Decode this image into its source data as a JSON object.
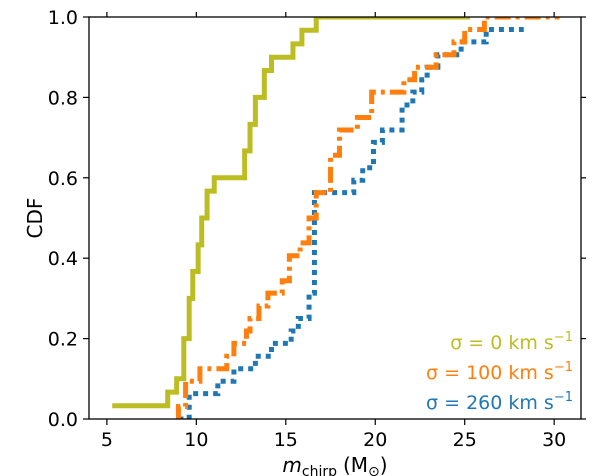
{
  "chart_data": {
    "type": "line",
    "title": "",
    "xlabel_main": "m",
    "xlabel_sub": "chirp",
    "xlabel_unit": "(M",
    "xlabel_unit_sub": "⊙",
    "xlabel_close": ")",
    "ylabel": "CDF",
    "xlim": [
      4,
      31.5
    ],
    "ylim": [
      0,
      1
    ],
    "xticks": [
      5,
      10,
      15,
      20,
      25,
      30
    ],
    "xtick_labels": [
      "5",
      "10",
      "15",
      "20",
      "25",
      "30"
    ],
    "yticks": [
      0,
      0.2,
      0.4,
      0.6,
      0.8,
      1.0
    ],
    "ytick_labels": [
      "0.0",
      "0.2",
      "0.4",
      "0.6",
      "0.8",
      "1.0"
    ],
    "grid": false,
    "legend_position": "bottom-right",
    "series": [
      {
        "name": "σ = 0 km s⁻¹",
        "legend_prefix": "σ = 0 km s",
        "legend_sup": "−1",
        "color": "#bcbd22",
        "style": "solid",
        "x": [
          5.3,
          8.4,
          8.9,
          9.3,
          9.6,
          9.8,
          10.1,
          10.3,
          10.6,
          11.0,
          12.7,
          13.0,
          13.3,
          13.8,
          14.2,
          15.4,
          15.9,
          16.3,
          16.7,
          17.0,
          25.3
        ],
        "y": [
          0.033,
          0.067,
          0.1,
          0.2,
          0.3,
          0.367,
          0.433,
          0.5,
          0.567,
          0.6,
          0.667,
          0.733,
          0.8,
          0.867,
          0.9,
          0.933,
          0.967,
          0.967,
          1.0,
          1.0,
          1.0
        ]
      },
      {
        "name": "σ = 100 km s⁻¹",
        "legend_prefix": "σ = 100 km s",
        "legend_sup": "−1",
        "color": "#ff7f0e",
        "style": "dashdot",
        "x": [
          8.9,
          9.0,
          9.4,
          10.2,
          11.7,
          12.1,
          12.8,
          13.0,
          13.5,
          14.0,
          14.8,
          15.2,
          15.8,
          16.3,
          16.7,
          17.5,
          18.0,
          19.0,
          19.8,
          21.6,
          22.2,
          23.4,
          24.4,
          25.0,
          26.1,
          28.6,
          30.3
        ],
        "y": [
          0.0,
          0.031,
          0.094,
          0.125,
          0.156,
          0.188,
          0.219,
          0.25,
          0.281,
          0.313,
          0.344,
          0.406,
          0.438,
          0.5,
          0.563,
          0.656,
          0.719,
          0.75,
          0.813,
          0.844,
          0.875,
          0.906,
          0.938,
          0.969,
          1.0,
          1.0,
          1.0
        ]
      },
      {
        "name": "σ = 260 km s⁻¹",
        "legend_prefix": "σ = 260 km s",
        "legend_sup": "−1",
        "color": "#1f77b4",
        "style": "dotted",
        "x": [
          9.0,
          9.6,
          11.2,
          12.1,
          13.3,
          14.2,
          15.3,
          15.7,
          16.3,
          16.6,
          18.8,
          19.3,
          19.9,
          20.4,
          21.5,
          22.1,
          22.6,
          22.9,
          23.5,
          24.8,
          26.2,
          27.3,
          28.3
        ],
        "y": [
          0.0,
          0.063,
          0.094,
          0.125,
          0.156,
          0.188,
          0.219,
          0.25,
          0.313,
          0.563,
          0.594,
          0.625,
          0.688,
          0.719,
          0.781,
          0.813,
          0.844,
          0.875,
          0.906,
          0.938,
          0.969,
          0.969,
          0.969
        ]
      }
    ]
  }
}
